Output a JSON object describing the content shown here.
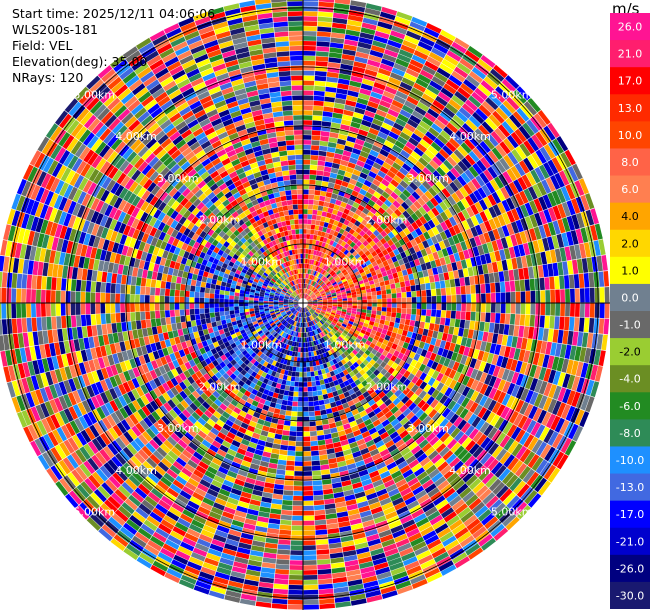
{
  "header": {
    "start_time": "Start time: 2025/12/11 04:06:06",
    "instrument": "WLS200s-181",
    "field": "Field: VEL",
    "elevation": "Elevation(deg): 35.00",
    "nrays": "NRays: 120"
  },
  "colorbar": {
    "unit": "m/s",
    "ticks": [
      "26.0",
      "21.0",
      "17.0",
      "13.0",
      "10.0",
      "8.0",
      "6.0",
      "4.0",
      "2.0",
      "1.0",
      "0.0",
      "-1.0",
      "-2.0",
      "-4.0",
      "-6.0",
      "-8.0",
      "-10.0",
      "-13.0",
      "-17.0",
      "-21.0",
      "-26.0",
      "-30.0"
    ],
    "colors": [
      "#ff1493",
      "#ff1e6e",
      "#ff0000",
      "#ff2a00",
      "#ff4500",
      "#ff6347",
      "#ff7f50",
      "#ffa500",
      "#ffd700",
      "#ffff00",
      "#708090",
      "#696969",
      "#9acd32",
      "#6b8e23",
      "#228b22",
      "#2e8b57",
      "#1e90ff",
      "#4169e1",
      "#0000ff",
      "#0000cd",
      "#000080",
      "#191970"
    ]
  },
  "chart_data": {
    "type": "heatmap",
    "projection": "polar (PPI)",
    "field": "VEL",
    "units": "m/s",
    "n_rays": 120,
    "range_rings_km": [
      1.0,
      2.0,
      3.0,
      4.0,
      5.0
    ],
    "range_ring_labels": [
      "1.00km",
      "2.00km",
      "3.00km",
      "4.00km",
      "5.00km"
    ],
    "max_range_km": 5.2,
    "color_range": [
      -30.0,
      26.0
    ],
    "quadrant_trend": "near-range northwest negative (blue), southeast positive (red/orange); far range noisy"
  }
}
